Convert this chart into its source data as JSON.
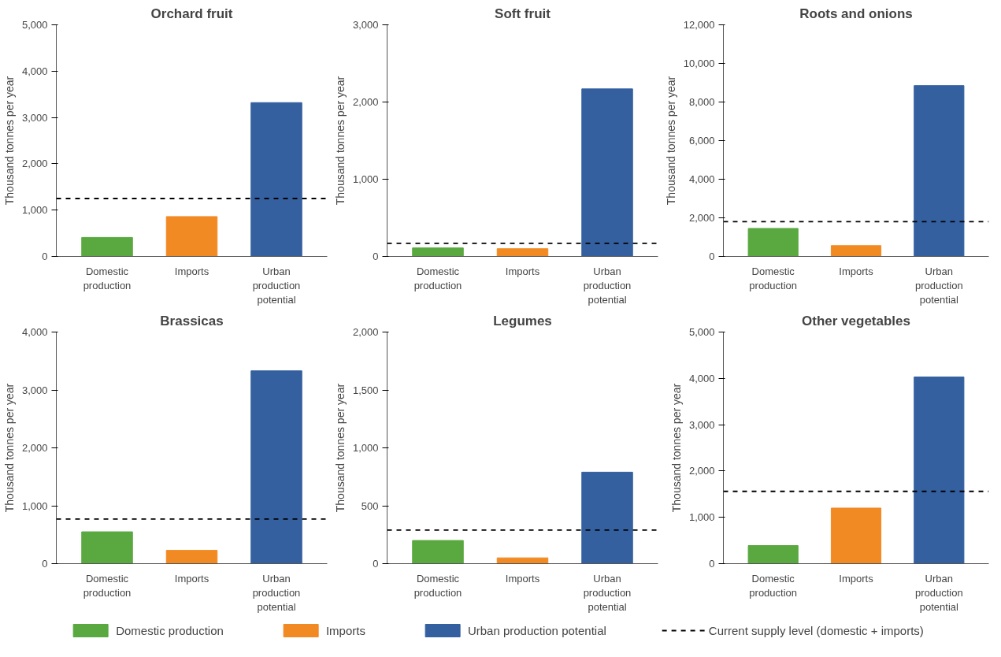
{
  "chart_data": [
    {
      "type": "bar",
      "stacked": true,
      "title": "Orchard fruit",
      "ylabel": "Thousand tonnes per year",
      "categories": [
        "Domestic production",
        "Imports",
        "Urban production potential"
      ],
      "ylim": [
        0,
        5000
      ],
      "yticks": [
        0,
        {
          "value": 1000,
          "label": "1,000"
        },
        {
          "value": 2000,
          "label": "2,000"
        },
        {
          "value": 3000,
          "label": "3,000"
        },
        {
          "value": 4000,
          "label": "4,000"
        },
        {
          "value": 5000,
          "label": "5,000"
        }
      ],
      "grid": false,
      "legend": "bottom",
      "series": [
        {
          "name": "Domestic production",
          "color": "#5aa840",
          "values": [
            410,
            null,
            null
          ]
        },
        {
          "name": "Imports",
          "color": "#f28a24",
          "values": [
            null,
            860,
            null
          ]
        },
        {
          "name": "Urban production potential",
          "color": "#3460a0",
          "values": [
            null,
            null,
            3320
          ]
        }
      ],
      "ref_lines": [
        {
          "axis": "y",
          "value": 1250,
          "label": "Current supply level (domestic + imports)",
          "color": "#000000",
          "line_style": "dashed"
        }
      ]
    },
    {
      "type": "bar",
      "stacked": true,
      "title": "Soft fruit",
      "ylabel": "Thousand tonnes per year",
      "categories": [
        "Domestic production",
        "Imports",
        "Urban production potential"
      ],
      "ylim": [
        0,
        3000
      ],
      "yticks": [
        0,
        {
          "value": 1000,
          "label": "1,000"
        },
        {
          "value": 2000,
          "label": "2,000"
        },
        {
          "value": 3000,
          "label": "3,000"
        }
      ],
      "grid": false,
      "series": [
        {
          "color": "#5aa840",
          "values": [
            110,
            null,
            null
          ]
        },
        {
          "color": "#f28a24",
          "values": [
            null,
            100,
            null
          ]
        },
        {
          "color": "#3460a0",
          "values": [
            null,
            null,
            2170
          ]
        }
      ],
      "ref_lines": [
        {
          "axis": "y",
          "value": 170,
          "color": "#000000",
          "line_style": "dashed"
        }
      ]
    },
    {
      "type": "bar",
      "stacked": true,
      "title": "Roots and onions",
      "ylabel": "Thousand tonnes per year",
      "categories": [
        "Domestic production",
        "Imports",
        "Urban production potential"
      ],
      "ylim": [
        0,
        12000
      ],
      "yticks": [
        0,
        {
          "value": 2000,
          "label": "2,000"
        },
        {
          "value": 4000,
          "label": "4,000"
        },
        {
          "value": 6000,
          "label": "6,000"
        },
        {
          "value": 8000,
          "label": "8,000"
        },
        {
          "value": 10000,
          "label": "10,000"
        },
        {
          "value": 12000,
          "label": "12,000"
        }
      ],
      "grid": false,
      "series": [
        {
          "color": "#5aa840",
          "values": [
            1450,
            null,
            null
          ]
        },
        {
          "color": "#f28a24",
          "values": [
            null,
            560,
            null
          ]
        },
        {
          "color": "#3460a0",
          "values": [
            null,
            null,
            8850
          ]
        }
      ],
      "ref_lines": [
        {
          "axis": "y",
          "value": 1800,
          "color": "#000000",
          "line_style": "dashed"
        }
      ]
    },
    {
      "type": "bar",
      "stacked": true,
      "title": "Brassicas",
      "ylabel": "Thousand tonnes per year",
      "categories": [
        "Domestic production",
        "Imports",
        "Urban production potential"
      ],
      "ylim": [
        0,
        4000
      ],
      "yticks": [
        0,
        {
          "value": 1000,
          "label": "1,000"
        },
        {
          "value": 2000,
          "label": "2,000"
        },
        {
          "value": 3000,
          "label": "3,000"
        },
        {
          "value": 4000,
          "label": "4,000"
        }
      ],
      "grid": false,
      "series": [
        {
          "color": "#5aa840",
          "values": [
            550,
            null,
            null
          ]
        },
        {
          "color": "#f28a24",
          "values": [
            null,
            230,
            null
          ]
        },
        {
          "color": "#3460a0",
          "values": [
            null,
            null,
            3330
          ]
        }
      ],
      "ref_lines": [
        {
          "axis": "y",
          "value": 770,
          "color": "#000000",
          "line_style": "dashed"
        }
      ]
    },
    {
      "type": "bar",
      "stacked": true,
      "title": "Legumes",
      "ylabel": "Thousand tonnes per year",
      "categories": [
        "Domestic production",
        "Imports",
        "Urban production potential"
      ],
      "ylim": [
        0,
        2000
      ],
      "yticks": [
        0,
        500,
        {
          "value": 1000,
          "label": "1,000"
        },
        {
          "value": 1500,
          "label": "1,500"
        },
        {
          "value": 2000,
          "label": "2,000"
        }
      ],
      "grid": false,
      "series": [
        {
          "color": "#5aa840",
          "values": [
            200,
            null,
            null
          ]
        },
        {
          "color": "#f28a24",
          "values": [
            null,
            50,
            null
          ]
        },
        {
          "color": "#3460a0",
          "values": [
            null,
            null,
            790
          ]
        }
      ],
      "ref_lines": [
        {
          "axis": "y",
          "value": 290,
          "color": "#000000",
          "line_style": "dashed"
        }
      ]
    },
    {
      "type": "bar",
      "stacked": true,
      "title": "Other vegetables",
      "ylabel": "Thousand tonnes per year",
      "categories": [
        "Domestic production",
        "Imports",
        "Urban production potential"
      ],
      "ylim": [
        0,
        5000
      ],
      "yticks": [
        0,
        {
          "value": 1000,
          "label": "1,000"
        },
        {
          "value": 2000,
          "label": "2,000"
        },
        {
          "value": 3000,
          "label": "3,000"
        },
        {
          "value": 4000,
          "label": "4,000"
        },
        {
          "value": 5000,
          "label": "5,000"
        }
      ],
      "grid": false,
      "series": [
        {
          "color": "#5aa840",
          "values": [
            390,
            null,
            null
          ]
        },
        {
          "color": "#f28a24",
          "values": [
            null,
            1200,
            null
          ]
        },
        {
          "color": "#3460a0",
          "values": [
            null,
            null,
            4030
          ]
        }
      ],
      "ref_lines": [
        {
          "axis": "y",
          "value": 1560,
          "color": "#000000",
          "line_style": "dashed"
        }
      ]
    }
  ]
}
